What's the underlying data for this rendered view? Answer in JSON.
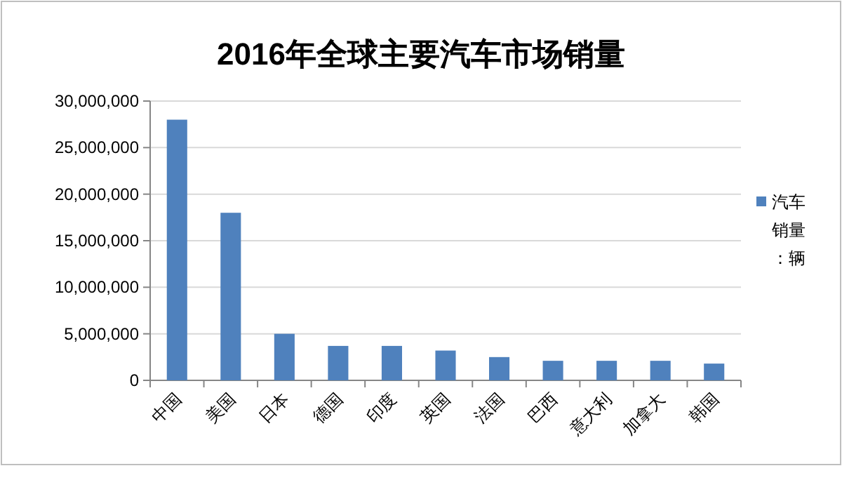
{
  "chart_data": {
    "type": "bar",
    "title": "2016年全球主要汽车市场销量",
    "categories": [
      "中国",
      "美国",
      "日本",
      "德国",
      "印度",
      "英国",
      "法国",
      "巴西",
      "意大利",
      "加拿大",
      "韩国"
    ],
    "series": [
      {
        "name": "汽车销量：辆",
        "color": "#4f81bd",
        "values": [
          28000000,
          18000000,
          5000000,
          3700000,
          3700000,
          3200000,
          2500000,
          2100000,
          2100000,
          2100000,
          1800000
        ]
      }
    ],
    "ylim": [
      0,
      30000000
    ],
    "yticks": [
      0,
      {
        "value": 5000000,
        "label": "5,000,000"
      },
      {
        "value": 10000000,
        "label": "10,000,000"
      },
      {
        "value": 15000000,
        "label": "15,000,000"
      },
      {
        "value": 20000000,
        "label": "20,000,000"
      },
      {
        "value": 25000000,
        "label": "25,000,000"
      },
      {
        "value": 30000000,
        "label": "30,000,000"
      }
    ],
    "grid": "y",
    "legend": "right"
  }
}
